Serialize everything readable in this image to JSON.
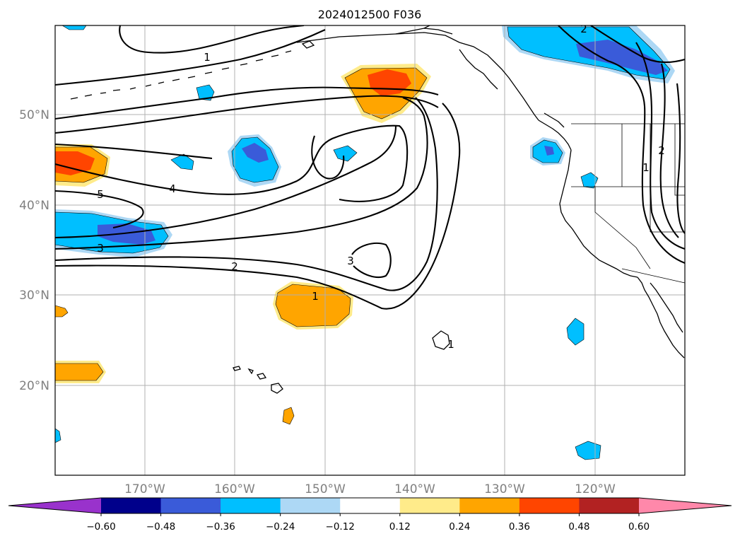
{
  "title": "2024012500 F036",
  "map": {
    "lat_labels": [
      "50°N",
      "40°N",
      "30°N",
      "20°N"
    ],
    "lon_labels": [
      "170°W",
      "160°W",
      "150°W",
      "140°W",
      "130°W",
      "120°W"
    ]
  },
  "contours": {
    "labels": [
      "1",
      "1",
      "2",
      "2",
      "3",
      "3",
      "4",
      "5",
      "1",
      "1",
      "2"
    ]
  },
  "colorbar": {
    "tick_labels": [
      "−0.60",
      "−0.48",
      "−0.36",
      "−0.24",
      "−0.12",
      "0.12",
      "0.24",
      "0.36",
      "0.48",
      "0.60"
    ],
    "colors": [
      "#9932cc",
      "#00008b",
      "#3a5bd9",
      "#00bfff",
      "#add8f5",
      "#ffffff",
      "#ffeb8a",
      "#ffa500",
      "#ff4500",
      "#b22222",
      "#ff88aa"
    ]
  }
}
